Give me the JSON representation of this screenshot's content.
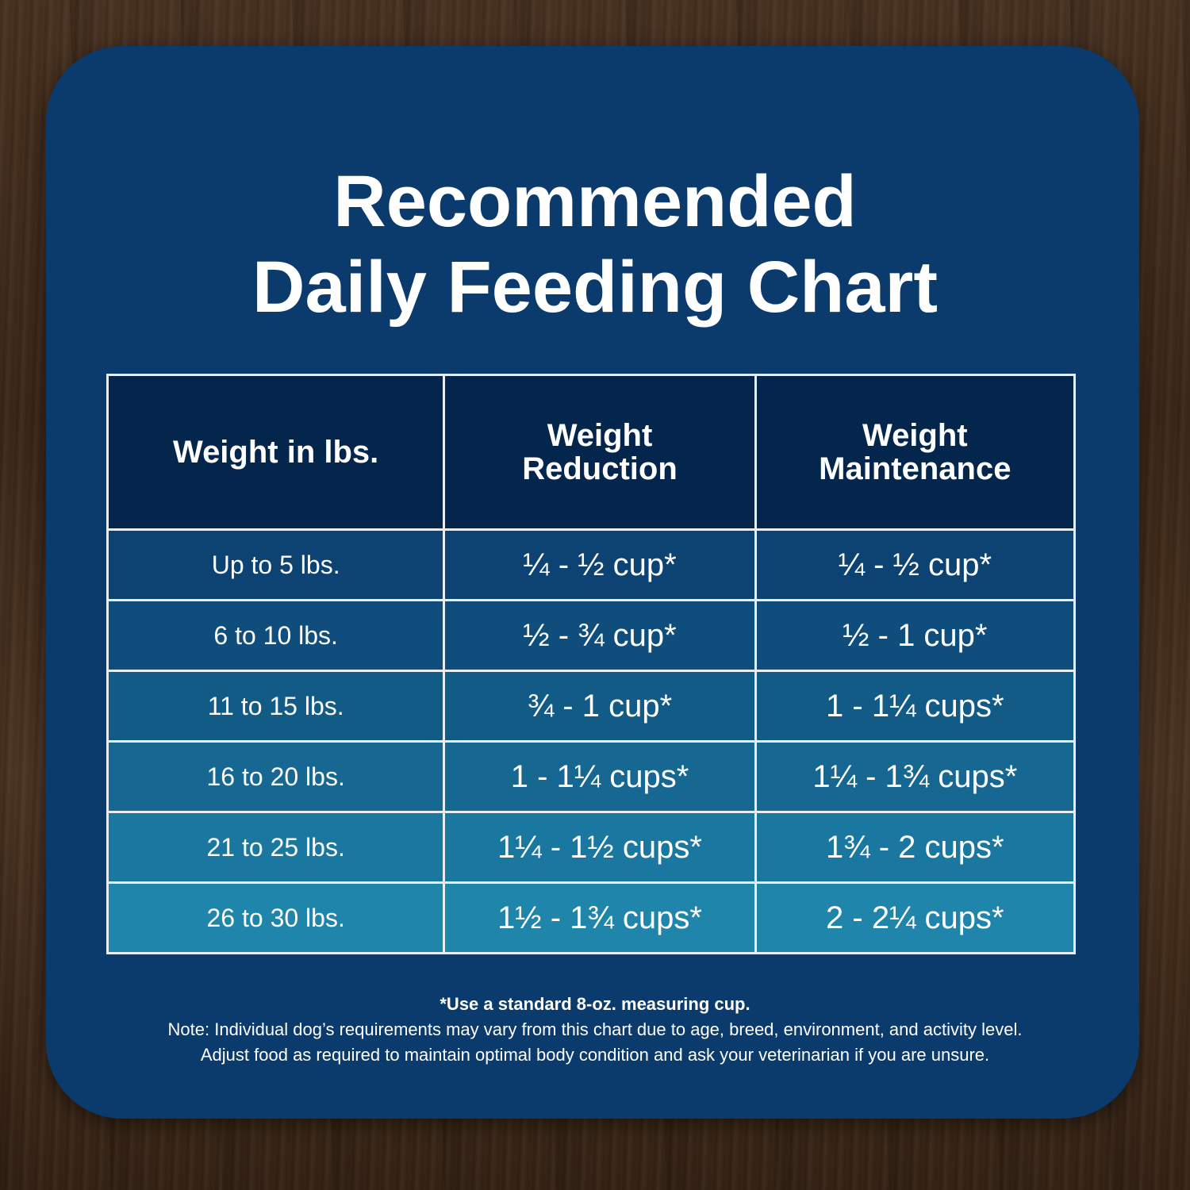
{
  "title": {
    "line1": "Recommended",
    "line2": "Daily Feeding Chart"
  },
  "chart_data": {
    "type": "table",
    "columns": [
      "Weight in lbs.",
      "Weight Reduction",
      "Weight Maintenance"
    ],
    "rows": [
      [
        "Up to 5 lbs.",
        "¼ - ½ cup*",
        "¼ - ½ cup*"
      ],
      [
        "6 to 10 lbs.",
        "½ - ¾ cup*",
        "½ - 1 cup*"
      ],
      [
        "11 to 15 lbs.",
        "¾ - 1 cup*",
        "1 - 1¼ cups*"
      ],
      [
        "16 to 20 lbs.",
        "1 - 1¼ cups*",
        "1¼ - 1¾ cups*"
      ],
      [
        "21 to 25 lbs.",
        "1¼ - 1½ cups*",
        "1¾ - 2 cups*"
      ],
      [
        "26 to 30 lbs.",
        "1½ - 1¾ cups*",
        "2 - 2¼ cups*"
      ]
    ]
  },
  "notes": {
    "footnote": "*Use a standard 8-oz. measuring cup.",
    "note_line1": "Note: Individual dog’s requirements may vary from this chart due to age, breed, environment, and activity level.",
    "note_line2": "Adjust food as required to maintain optimal body condition and ask your veterinarian if you are unsure."
  },
  "colors": {
    "card": "#0b3a6c",
    "header_cell": "#04264d",
    "row_gradient": [
      "#0c4372",
      "#0f4e7c",
      "#135b87",
      "#166892",
      "#1a779f",
      "#1f85ab"
    ],
    "grid_line": "#e9eef4",
    "text": "#ffffff"
  }
}
